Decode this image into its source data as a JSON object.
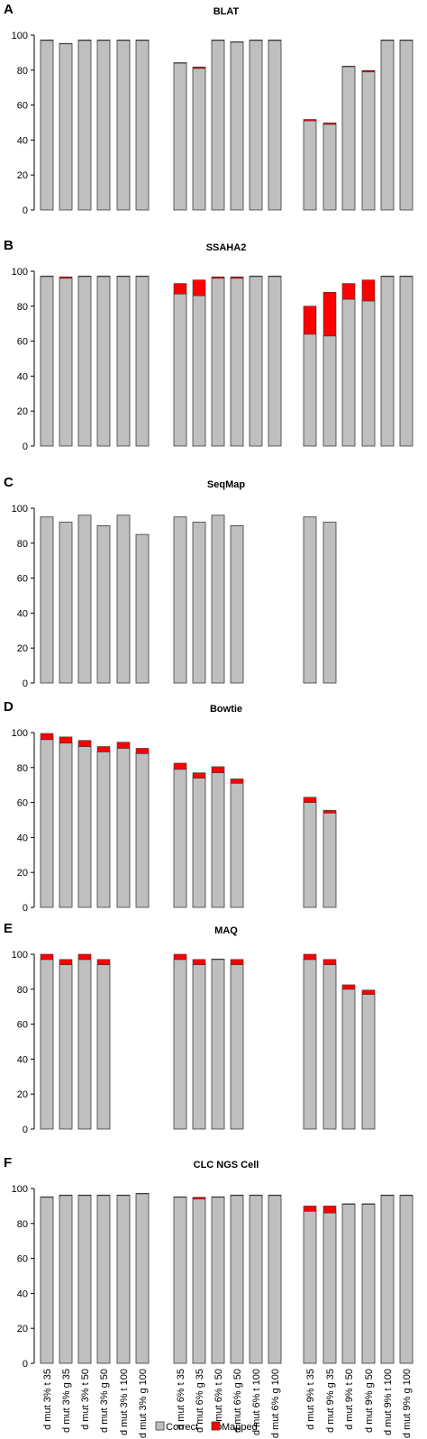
{
  "colors": {
    "correct": "#bfbfbf",
    "mapped": "#ff0000",
    "outline": "#3a3a3a"
  },
  "legend": {
    "correct_label": "Correct",
    "mapped_label": "Mapped"
  },
  "chart_data": [
    {
      "type": "bar",
      "stacked": true,
      "letter": "A",
      "title": "BLAT",
      "ylim": [
        0,
        100
      ],
      "yticks": [
        0,
        20,
        40,
        60,
        80,
        100
      ],
      "categories": [
        "d mut 3% t 35",
        "d mut 3% g 35",
        "d mut 3% t 50",
        "d mut 3% g 50",
        "d mut 3% t 100",
        "d mut 3% g 100",
        "d mut 6% t 35",
        "d mut 6% g 35",
        "d mut 6% t 50",
        "d mut 6% g 50",
        "d mut 6% t 100",
        "d mut 6% g 100",
        "d mut 9% t 35",
        "d mut 9% g 35",
        "d mut 9% t 50",
        "d mut 9% g 50",
        "d mut 9% t 100",
        "d mut 9% g 100"
      ],
      "series": [
        {
          "name": "Correct",
          "values": [
            97,
            95,
            97,
            97,
            97,
            97,
            84,
            81,
            97,
            96,
            97,
            97,
            51,
            49,
            82,
            79,
            97,
            97
          ]
        },
        {
          "name": "Mapped",
          "values": [
            0.3,
            0.3,
            0.3,
            0.3,
            0.3,
            0.3,
            0.3,
            0.8,
            0.3,
            0.3,
            0.3,
            0.3,
            0.8,
            0.8,
            0.3,
            0.8,
            0.3,
            0.3
          ]
        }
      ]
    },
    {
      "type": "bar",
      "stacked": true,
      "letter": "B",
      "title": "SSAHA2",
      "ylim": [
        0,
        100
      ],
      "yticks": [
        0,
        20,
        40,
        60,
        80,
        100
      ],
      "categories": [
        "d mut 3% t 35",
        "d mut 3% g 35",
        "d mut 3% t 50",
        "d mut 3% g 50",
        "d mut 3% t 100",
        "d mut 3% g 100",
        "d mut 6% t 35",
        "d mut 6% g 35",
        "d mut 6% t 50",
        "d mut 6% g 50",
        "d mut 6% t 100",
        "d mut 6% g 100",
        "d mut 9% t 35",
        "d mut 9% g 35",
        "d mut 9% t 50",
        "d mut 9% g 50",
        "d mut 9% t 100",
        "d mut 9% g 100"
      ],
      "series": [
        {
          "name": "Correct",
          "values": [
            97,
            96,
            97,
            97,
            97,
            97,
            87,
            86,
            96,
            96,
            97,
            97,
            64,
            63,
            84,
            83,
            97,
            97
          ]
        },
        {
          "name": "Mapped",
          "values": [
            0.3,
            0.8,
            0.3,
            0.3,
            0.3,
            0.3,
            6,
            9,
            0.8,
            0.8,
            0.3,
            0.3,
            16,
            25,
            9,
            12,
            0.3,
            0.3
          ]
        }
      ]
    },
    {
      "type": "bar",
      "stacked": true,
      "letter": "C",
      "title": "SeqMap",
      "ylim": [
        0,
        100
      ],
      "yticks": [
        0,
        20,
        40,
        60,
        80,
        100
      ],
      "categories": [
        "d mut 3% t 35",
        "d mut 3% g 35",
        "d mut 3% t 50",
        "d mut 3% g 50",
        "d mut 3% t 100",
        "d mut 3% g 100",
        "d mut 6% t 35",
        "d mut 6% g 35",
        "d mut 6% t 50",
        "d mut 6% g 50",
        "d mut 6% t 100",
        "d mut 6% g 100",
        "d mut 9% t 35",
        "d mut 9% g 35",
        "d mut 9% t 50",
        "d mut 9% g 50",
        "d mut 9% t 100",
        "d mut 9% g 100"
      ],
      "series": [
        {
          "name": "Correct",
          "values": [
            95,
            92,
            96,
            90,
            96,
            85,
            95,
            92,
            96,
            90,
            null,
            null,
            95,
            92,
            null,
            null,
            null,
            null
          ]
        },
        {
          "name": "Mapped",
          "values": [
            0,
            0,
            0,
            0,
            0,
            0,
            0,
            0,
            0,
            0,
            null,
            null,
            0,
            0,
            null,
            null,
            null,
            null
          ]
        }
      ]
    },
    {
      "type": "bar",
      "stacked": true,
      "letter": "D",
      "title": "Bowtie",
      "ylim": [
        0,
        100
      ],
      "yticks": [
        0,
        20,
        40,
        60,
        80,
        100
      ],
      "categories": [
        "d mut 3% t 35",
        "d mut 3% g 35",
        "d mut 3% t 50",
        "d mut 3% g 50",
        "d mut 3% t 100",
        "d mut 3% g 100",
        "d mut 6% t 35",
        "d mut 6% g 35",
        "d mut 6% t 50",
        "d mut 6% g 50",
        "d mut 6% t 100",
        "d mut 6% g 100",
        "d mut 9% t 35",
        "d mut 9% g 35",
        "d mut 9% t 50",
        "d mut 9% g 50",
        "d mut 9% t 100",
        "d mut 9% g 100"
      ],
      "series": [
        {
          "name": "Correct",
          "values": [
            96,
            94,
            92,
            89,
            91,
            88,
            79,
            74,
            77,
            71,
            null,
            null,
            60,
            54,
            null,
            null,
            null,
            null
          ]
        },
        {
          "name": "Mapped",
          "values": [
            3.5,
            3.5,
            3.5,
            3,
            3.5,
            3,
            3.5,
            3,
            3.5,
            2.5,
            null,
            null,
            3,
            1.5,
            null,
            null,
            null,
            null
          ]
        }
      ]
    },
    {
      "type": "bar",
      "stacked": true,
      "letter": "E",
      "title": "MAQ",
      "ylim": [
        0,
        100
      ],
      "yticks": [
        0,
        20,
        40,
        60,
        80,
        100
      ],
      "categories": [
        "d mut 3% t 35",
        "d mut 3% g 35",
        "d mut 3% t 50",
        "d mut 3% g 50",
        "d mut 3% t 100",
        "d mut 3% g 100",
        "d mut 6% t 35",
        "d mut 6% g 35",
        "d mut 6% t 50",
        "d mut 6% g 50",
        "d mut 6% t 100",
        "d mut 6% g 100",
        "d mut 9% t 35",
        "d mut 9% g 35",
        "d mut 9% t 50",
        "d mut 9% g 50",
        "d mut 9% t 100",
        "d mut 9% g 100"
      ],
      "series": [
        {
          "name": "Correct",
          "values": [
            97,
            94,
            97,
            94,
            null,
            null,
            97,
            94,
            97,
            94,
            null,
            null,
            97,
            94,
            80,
            77,
            null,
            null
          ]
        },
        {
          "name": "Mapped",
          "values": [
            3,
            3,
            3,
            3,
            null,
            null,
            3,
            3,
            0.3,
            3,
            null,
            null,
            3,
            3,
            2.5,
            2.5,
            null,
            null
          ]
        }
      ]
    },
    {
      "type": "bar",
      "stacked": true,
      "letter": "F",
      "title": "CLC NGS Cell",
      "ylim": [
        0,
        100
      ],
      "yticks": [
        0,
        20,
        40,
        60,
        80,
        100
      ],
      "categories": [
        "d mut 3% t 35",
        "d mut 3% g 35",
        "d mut 3% t 50",
        "d mut 3% g 50",
        "d mut 3% t 100",
        "d mut 3% g 100",
        "d mut 6% t 35",
        "d mut 6% g 35",
        "d mut 6% t 50",
        "d mut 6% g 50",
        "d mut 6% t 100",
        "d mut 6% g 100",
        "d mut 9% t 35",
        "d mut 9% g 35",
        "d mut 9% t 50",
        "d mut 9% g 50",
        "d mut 9% t 100",
        "d mut 9% g 100"
      ],
      "series": [
        {
          "name": "Correct",
          "values": [
            95,
            96,
            96,
            96,
            96,
            97,
            95,
            94,
            95,
            96,
            96,
            96,
            87,
            86,
            91,
            91,
            96,
            96
          ]
        },
        {
          "name": "Mapped",
          "values": [
            0.3,
            0.3,
            0.3,
            0.3,
            0.3,
            0.3,
            0.3,
            1,
            0.3,
            0.3,
            0.3,
            0.3,
            3,
            4,
            0.3,
            0.3,
            0.3,
            0.3
          ]
        }
      ]
    }
  ]
}
